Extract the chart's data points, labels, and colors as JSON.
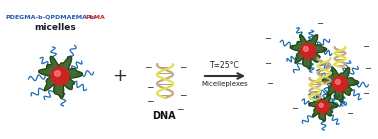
{
  "background_color": "#ffffff",
  "label_pdegma": "PDEGMA-b-QPDMAEMA-b-",
  "label_plma": "PLMA",
  "label_micelles": "micelles",
  "label_dna": "DNA",
  "label_arrow_top": "T=25°C",
  "label_arrow_bottom": "Micelleplexes",
  "label_pdegma_color": "#2255aa",
  "label_plma_color": "#cc2222",
  "label_micelles_color": "#1a1a2e",
  "core_color": "#cc2222",
  "core_shine": "#ff9999",
  "corona_color": "#2d5a1b",
  "corona_outline": "#1a3a0a",
  "chain_color": "#1a6bb5",
  "dna_color1": "#c8a87c",
  "dna_color2": "#e0e050",
  "arrow_color": "#333333",
  "minus_color": "#222222",
  "figsize": [
    3.78,
    1.39
  ],
  "dpi": 100
}
